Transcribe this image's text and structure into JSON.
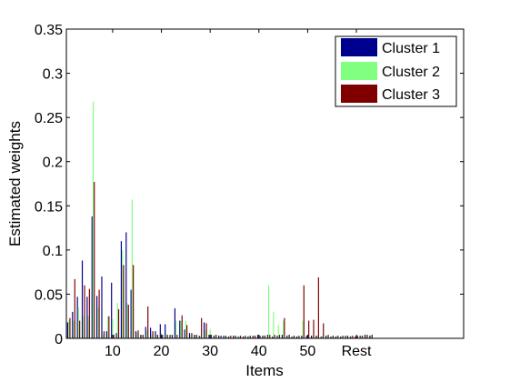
{
  "chart_data": {
    "type": "bar",
    "xlabel": "Items",
    "ylabel": "Estimated weights",
    "ylim": [
      0,
      0.35
    ],
    "xlim": [
      0.5,
      82
    ],
    "yticks": [
      {
        "value": 0,
        "label": "0"
      },
      {
        "value": 0.05,
        "label": "0.05"
      },
      {
        "value": 0.1,
        "label": "0.1"
      },
      {
        "value": 0.15,
        "label": "0.15"
      },
      {
        "value": 0.2,
        "label": "0.2"
      },
      {
        "value": 0.25,
        "label": "0.25"
      },
      {
        "value": 0.3,
        "label": "0.3"
      },
      {
        "value": 0.35,
        "label": "0.35"
      }
    ],
    "xticks": [
      {
        "value": 10,
        "label": "10"
      },
      {
        "value": 20,
        "label": "20"
      },
      {
        "value": 30,
        "label": "30"
      },
      {
        "value": 40,
        "label": "40"
      },
      {
        "value": 50,
        "label": "50"
      },
      {
        "value": 60,
        "label": "Rest"
      }
    ],
    "legend_position": "top-right",
    "grid": false,
    "series": [
      {
        "name": "Cluster 1",
        "color": "#00008f",
        "x": [
          1,
          2,
          3,
          4,
          5,
          6,
          7,
          8,
          9,
          10,
          11,
          12,
          13,
          14,
          15,
          16,
          17,
          18,
          19,
          20,
          21,
          22,
          23,
          24,
          25,
          26,
          27,
          28,
          29,
          30,
          31,
          32,
          33,
          34,
          35,
          36,
          37,
          38,
          39,
          40,
          41,
          42,
          43,
          44,
          45,
          46,
          47,
          48,
          49,
          50,
          51,
          52,
          53,
          54,
          55,
          56,
          57,
          58,
          59,
          60,
          61,
          62,
          63
        ],
        "values": [
          0.018,
          0.03,
          0.047,
          0.088,
          0.047,
          0.138,
          0.048,
          0.07,
          0.008,
          0.063,
          0.006,
          0.11,
          0.12,
          0.055,
          0.008,
          0.004,
          0.013,
          0.012,
          0.008,
          0.016,
          0.016,
          0.004,
          0.034,
          0.02,
          0.01,
          0.006,
          0.004,
          0.003,
          0.018,
          0.004,
          0.003,
          0.003,
          0.003,
          0.002,
          0.003,
          0.002,
          0.002,
          0.002,
          0.003,
          0.004,
          0.003,
          0.004,
          0.002,
          0.003,
          0.004,
          0.003,
          0.002,
          0.002,
          0.003,
          0.003,
          0.003,
          0.003,
          0.002,
          0.003,
          0.002,
          0.002,
          0.002,
          0.003,
          0.002,
          0.002,
          0.003,
          0.004,
          0.003
        ]
      },
      {
        "name": "Cluster 2",
        "color": "#80ff80",
        "x": [
          1,
          2,
          3,
          4,
          5,
          6,
          7,
          8,
          9,
          10,
          11,
          12,
          13,
          14,
          15,
          16,
          17,
          18,
          19,
          20,
          21,
          22,
          23,
          24,
          25,
          26,
          27,
          28,
          29,
          30,
          31,
          32,
          33,
          34,
          35,
          36,
          37,
          38,
          39,
          40,
          41,
          42,
          43,
          44,
          45,
          46,
          47,
          48,
          49,
          50,
          51,
          52,
          53,
          54,
          55,
          56,
          57,
          58,
          59,
          60,
          61,
          62,
          63
        ],
        "values": [
          0.02,
          0.02,
          0.035,
          0.025,
          0.025,
          0.268,
          0.035,
          0.004,
          0.025,
          0.022,
          0.04,
          0.1,
          0.04,
          0.157,
          0.006,
          0.004,
          0.009,
          0.004,
          0.004,
          0.006,
          0.005,
          0.004,
          0.02,
          0.02,
          0.02,
          0.004,
          0.004,
          0.003,
          0.009,
          0.01,
          0.004,
          0.003,
          0.003,
          0.003,
          0.003,
          0.003,
          0.003,
          0.003,
          0.003,
          0.003,
          0.004,
          0.06,
          0.03,
          0.015,
          0.02,
          0.004,
          0.003,
          0.003,
          0.02,
          0.004,
          0.003,
          0.003,
          0.003,
          0.003,
          0.003,
          0.003,
          0.003,
          0.003,
          0.003,
          0.003,
          0.003,
          0.004,
          0.004
        ]
      },
      {
        "name": "Cluster 3",
        "color": "#800000",
        "x": [
          1,
          2,
          3,
          4,
          5,
          6,
          7,
          8,
          9,
          10,
          11,
          12,
          13,
          14,
          15,
          16,
          17,
          18,
          19,
          20,
          21,
          22,
          23,
          24,
          25,
          26,
          27,
          28,
          29,
          30,
          31,
          32,
          33,
          34,
          35,
          36,
          37,
          38,
          39,
          40,
          41,
          42,
          43,
          44,
          45,
          46,
          47,
          48,
          49,
          50,
          51,
          52,
          53,
          54,
          55,
          56,
          57,
          58,
          59,
          60,
          61,
          62,
          63
        ],
        "values": [
          0.023,
          0.067,
          0.02,
          0.06,
          0.056,
          0.177,
          0.055,
          0.008,
          0.025,
          0.004,
          0.033,
          0.083,
          0.038,
          0.083,
          0.009,
          0.004,
          0.036,
          0.008,
          0.004,
          0.004,
          0.004,
          0.004,
          0.004,
          0.026,
          0.015,
          0.006,
          0.004,
          0.023,
          0.017,
          0.004,
          0.004,
          0.003,
          0.003,
          0.003,
          0.003,
          0.003,
          0.003,
          0.003,
          0.003,
          0.003,
          0.003,
          0.004,
          0.004,
          0.004,
          0.023,
          0.004,
          0.003,
          0.003,
          0.06,
          0.02,
          0.021,
          0.069,
          0.017,
          0.004,
          0.003,
          0.003,
          0.003,
          0.003,
          0.003,
          0.003,
          0.003,
          0.004,
          0.004
        ]
      }
    ]
  }
}
